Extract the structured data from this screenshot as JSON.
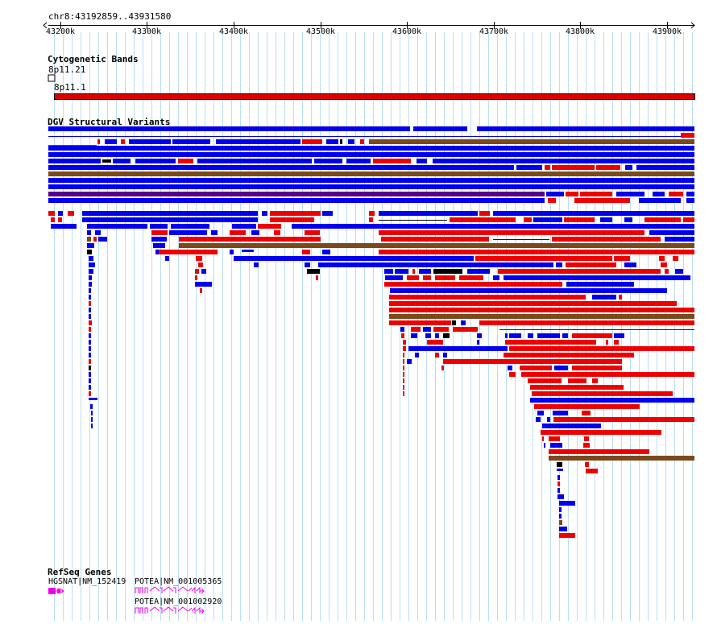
{
  "location": "chr8:43192859..43931580",
  "ruler": {
    "start": 43192859,
    "end": 43931580,
    "ticks": [
      {
        "pos": 43200000,
        "label": "43200k"
      },
      {
        "pos": 43300000,
        "label": "43300k"
      },
      {
        "pos": 43400000,
        "label": "43400k"
      },
      {
        "pos": 43500000,
        "label": "43500k"
      },
      {
        "pos": 43600000,
        "label": "43600k"
      },
      {
        "pos": 43700000,
        "label": "43700k"
      },
      {
        "pos": 43800000,
        "label": "43800k"
      },
      {
        "pos": 43900000,
        "label": "43900k"
      }
    ]
  },
  "tracks": {
    "cytobands": {
      "title": "Cytogenetic Bands",
      "bands": [
        {
          "name": "8p11.21",
          "color": "#ffffff"
        },
        {
          "name": "8p11.1",
          "color": "#dd0000"
        }
      ]
    },
    "dgv": {
      "title": "DGV Structural Variants",
      "colors": {
        "gain": "#0000ee",
        "loss": "#ee0000",
        "inversion": "#7a4a1c",
        "complex": "#000000",
        "mixed": "#55008a"
      }
    },
    "refseq": {
      "title": "RefSeq Genes",
      "color": "#ee00ee",
      "genes": [
        {
          "label": "HGSNAT|NM_152419"
        },
        {
          "label": "POTEA|NM_001005365"
        },
        {
          "label": "POTEA|NM_001002920"
        }
      ]
    }
  }
}
